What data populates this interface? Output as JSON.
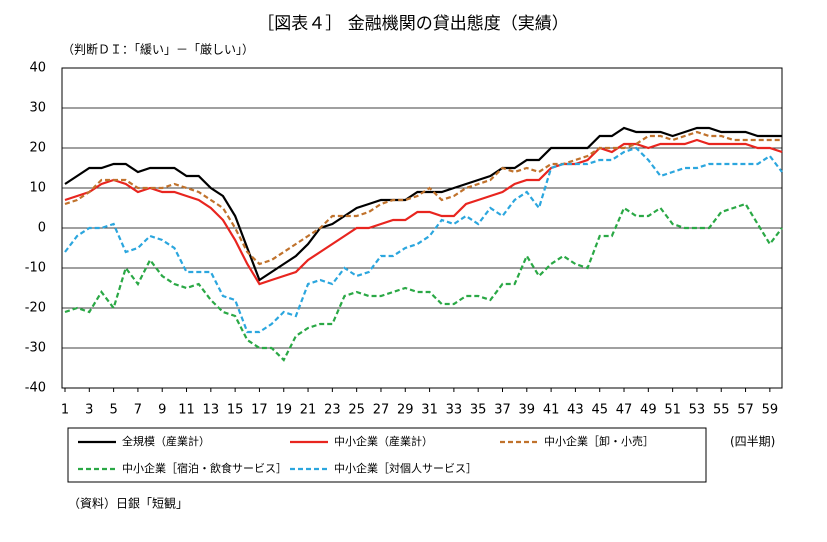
{
  "chart_data": {
    "type": "line",
    "title": "［図表４］ 金融機関の貸出態度（実績）",
    "subtitle": "（判断ＤＩ：「緩い」－「厳しい」）",
    "x_unit": "(四半期)",
    "source": "（資料）日銀「短観」",
    "x": [
      1,
      2,
      3,
      4,
      5,
      6,
      7,
      8,
      9,
      10,
      11,
      12,
      13,
      14,
      15,
      16,
      17,
      18,
      19,
      20,
      21,
      22,
      23,
      24,
      25,
      26,
      27,
      28,
      29,
      30,
      31,
      32,
      33,
      34,
      35,
      36,
      37,
      38,
      39,
      40,
      41,
      42,
      43,
      44,
      45,
      46,
      47,
      48,
      49,
      50,
      51,
      52,
      53,
      54,
      55,
      56,
      57,
      58,
      59,
      60
    ],
    "xlim": [
      1,
      60
    ],
    "xticks": [
      1,
      3,
      5,
      7,
      9,
      11,
      13,
      15,
      17,
      19,
      21,
      23,
      25,
      27,
      29,
      31,
      33,
      35,
      37,
      39,
      41,
      43,
      45,
      47,
      49,
      51,
      53,
      55,
      57,
      59
    ],
    "ylim": [
      -40,
      40
    ],
    "yticks": [
      -40,
      -30,
      -20,
      -10,
      0,
      10,
      20,
      30,
      40
    ],
    "grid": true,
    "series": [
      {
        "name": "全規模（産業計）",
        "color": "#000000",
        "dash": false,
        "values": [
          11,
          13,
          15,
          15,
          16,
          16,
          14,
          15,
          15,
          15,
          13,
          13,
          10,
          8,
          3,
          -5,
          -13,
          -11,
          -9,
          -7,
          -4,
          0,
          1,
          3,
          5,
          6,
          7,
          7,
          7,
          9,
          9,
          9,
          10,
          11,
          12,
          13,
          15,
          15,
          17,
          17,
          20,
          20,
          20,
          20,
          23,
          23,
          25,
          24,
          24,
          24,
          23,
          24,
          25,
          25,
          24,
          24,
          24,
          23,
          23,
          23
        ]
      },
      {
        "name": "中小企業（産業計）",
        "color": "#e8251f",
        "dash": false,
        "values": [
          7,
          8,
          9,
          11,
          12,
          11,
          9,
          10,
          9,
          9,
          8,
          7,
          5,
          2,
          -3,
          -9,
          -14,
          -13,
          -12,
          -11,
          -8,
          -6,
          -4,
          -2,
          0,
          0,
          1,
          2,
          2,
          4,
          4,
          3,
          3,
          6,
          7,
          8,
          9,
          11,
          12,
          12,
          15,
          16,
          16,
          17,
          20,
          19,
          21,
          21,
          20,
          21,
          21,
          21,
          22,
          21,
          21,
          21,
          21,
          20,
          20,
          19
        ]
      },
      {
        "name": "中小企業［卸・小売］",
        "color": "#c0722c",
        "dash": true,
        "values": [
          6,
          7,
          9,
          12,
          12,
          12,
          10,
          10,
          10,
          11,
          10,
          9,
          7,
          5,
          0,
          -6,
          -9,
          -8,
          -6,
          -4,
          -2,
          0,
          3,
          3,
          3,
          4,
          6,
          7,
          7,
          8,
          10,
          7,
          8,
          10,
          11,
          12,
          15,
          14,
          15,
          14,
          16,
          16,
          17,
          18,
          20,
          20,
          20,
          21,
          23,
          23,
          22,
          23,
          24,
          23,
          23,
          22,
          22,
          22,
          22,
          22
        ]
      },
      {
        "name": "中小企業［宿泊・飲食サービス］",
        "color": "#2aa845",
        "dash": true,
        "values": [
          -21,
          -20,
          -21,
          -16,
          -20,
          -10,
          -14,
          -8,
          -12,
          -14,
          -15,
          -14,
          -18,
          -21,
          -22,
          -28,
          -30,
          -30,
          -33,
          -27,
          -25,
          -24,
          -24,
          -17,
          -16,
          -17,
          -17,
          -16,
          -15,
          -16,
          -16,
          -19,
          -19,
          -17,
          -17,
          -18,
          -14,
          -14,
          -7,
          -12,
          -9,
          -7,
          -9,
          -10,
          -2,
          -2,
          5,
          3,
          3,
          5,
          1,
          0,
          0,
          0,
          4,
          5,
          6,
          1,
          -4,
          0
        ]
      },
      {
        "name": "中小企業［対個人サービス］",
        "color": "#2ba6de",
        "dash": true,
        "values": [
          -6,
          -2,
          0,
          0,
          1,
          -6,
          -5,
          -2,
          -3,
          -5,
          -11,
          -11,
          -11,
          -17,
          -18,
          -26,
          -26,
          -24,
          -21,
          -22,
          -14,
          -13,
          -14,
          -10,
          -12,
          -11,
          -7,
          -7,
          -5,
          -4,
          -2,
          2,
          1,
          3,
          1,
          5,
          3,
          7,
          9,
          5,
          15,
          16,
          16,
          16,
          17,
          17,
          19,
          20,
          17,
          13,
          14,
          15,
          15,
          16,
          16,
          16,
          16,
          16,
          18,
          14
        ]
      }
    ]
  }
}
